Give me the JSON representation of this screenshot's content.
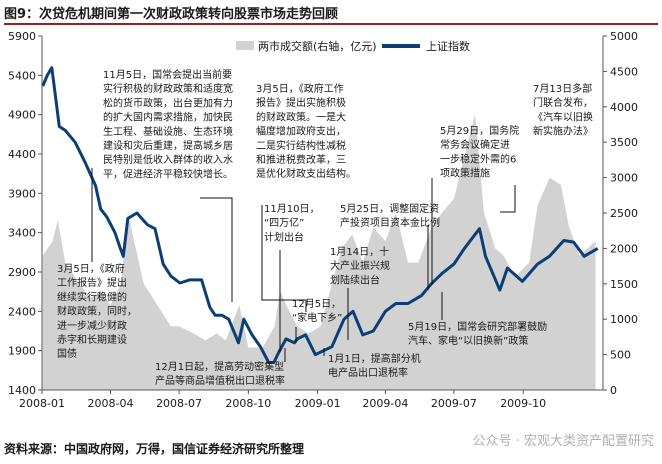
{
  "figure_title": "图9：次贷危机期间第一次财政政策转向股票市场走势回顾",
  "source": "资料来源：中国政府网，万得，国信证券经济研究所整理",
  "watermark": "公众号 · 宏观大类资产配置研究",
  "colors": {
    "index_line": "#0b3e75",
    "volume_area": "#d2d2d2",
    "title_rule": "#9c1d24",
    "annotation_line": "#111111"
  },
  "chart_data": {
    "type": "line",
    "x_ticks": [
      "2008-01",
      "2008-04",
      "2008-07",
      "2008-10",
      "2009-01",
      "2009-04",
      "2009-07",
      "2009-10"
    ],
    "yleft_ticks": [
      1400,
      1900,
      2400,
      2900,
      3400,
      3900,
      4400,
      4900,
      5400,
      5900
    ],
    "yright_ticks": [
      0,
      500,
      1000,
      1500,
      2000,
      2500,
      3000,
      3500,
      4000,
      4500,
      5000
    ],
    "yleft_lim": [
      1400,
      5900
    ],
    "yright_lim": [
      0,
      5000
    ],
    "xlim": [
      "2008-01-01",
      "2010-01-15"
    ],
    "legend_location": "top",
    "series": [
      {
        "name": "两市成交额(右轴，亿元)",
        "type": "area",
        "axis": "right",
        "x": [
          "2008-01-02",
          "2008-01-15",
          "2008-01-22",
          "2008-02-01",
          "2008-02-20",
          "2008-03-05",
          "2008-03-18",
          "2008-04-01",
          "2008-04-15",
          "2008-04-24",
          "2008-05-15",
          "2008-06-02",
          "2008-06-20",
          "2008-07-01",
          "2008-07-20",
          "2008-08-05",
          "2008-08-20",
          "2008-09-01",
          "2008-09-19",
          "2008-10-01",
          "2008-10-20",
          "2008-11-05",
          "2008-11-12",
          "2008-11-25",
          "2008-12-05",
          "2008-12-20",
          "2009-01-05",
          "2009-01-15",
          "2009-02-02",
          "2009-02-16",
          "2009-03-02",
          "2009-03-16",
          "2009-04-01",
          "2009-04-15",
          "2009-05-01",
          "2009-05-15",
          "2009-06-01",
          "2009-06-15",
          "2009-07-01",
          "2009-07-15",
          "2009-07-29",
          "2009-08-10",
          "2009-08-25",
          "2009-09-05",
          "2009-09-20",
          "2009-10-09",
          "2009-10-20",
          "2009-11-05",
          "2009-11-20",
          "2009-12-01",
          "2009-12-15",
          "2010-01-05"
        ],
        "values": [
          1900,
          2100,
          2400,
          1800,
          1500,
          1300,
          1400,
          1200,
          1500,
          2500,
          1500,
          1200,
          900,
          900,
          800,
          700,
          800,
          700,
          1200,
          600,
          600,
          900,
          1400,
          1100,
          900,
          800,
          900,
          1300,
          2000,
          2200,
          1800,
          2300,
          2100,
          2500,
          1800,
          1800,
          2300,
          2500,
          2700,
          3300,
          3900,
          2500,
          2000,
          1900,
          1600,
          1800,
          2600,
          3000,
          2900,
          2300,
          1900,
          2100
        ]
      },
      {
        "name": "上证指数",
        "type": "line",
        "axis": "left",
        "x": [
          "2008-01-02",
          "2008-01-08",
          "2008-01-14",
          "2008-01-18",
          "2008-01-24",
          "2008-02-01",
          "2008-02-14",
          "2008-02-27",
          "2008-03-05",
          "2008-03-12",
          "2008-03-19",
          "2008-03-27",
          "2008-04-07",
          "2008-04-14",
          "2008-04-18",
          "2008-04-24",
          "2008-05-06",
          "2008-05-20",
          "2008-05-30",
          "2008-06-10",
          "2008-06-20",
          "2008-07-02",
          "2008-07-15",
          "2008-07-31",
          "2008-08-11",
          "2008-08-18",
          "2008-08-27",
          "2008-09-05",
          "2008-09-18",
          "2008-09-25",
          "2008-10-06",
          "2008-10-17",
          "2008-10-28",
          "2008-11-04",
          "2008-11-10",
          "2008-11-20",
          "2008-12-01",
          "2008-12-05",
          "2008-12-16",
          "2008-12-29",
          "2009-01-09",
          "2009-01-20",
          "2009-02-05",
          "2009-02-17",
          "2009-03-02",
          "2009-03-16",
          "2009-04-01",
          "2009-04-15",
          "2009-05-01",
          "2009-05-19",
          "2009-06-01",
          "2009-06-15",
          "2009-07-01",
          "2009-07-15",
          "2009-08-04",
          "2009-08-12",
          "2009-08-31",
          "2009-09-10",
          "2009-09-30",
          "2009-10-20",
          "2009-11-05",
          "2009-11-24",
          "2009-12-07",
          "2009-12-21",
          "2010-01-08"
        ],
        "values": [
          5265,
          5400,
          5497,
          5200,
          4750,
          4700,
          4550,
          4300,
          4150,
          4000,
          3700,
          3600,
          3400,
          3200,
          3100,
          3580,
          3650,
          3500,
          3450,
          3000,
          2850,
          2760,
          2800,
          2800,
          2450,
          2350,
          2350,
          2300,
          2000,
          2300,
          2100,
          1950,
          1750,
          1750,
          1870,
          2050,
          2000,
          2050,
          2100,
          1850,
          1900,
          1950,
          2300,
          2400,
          2100,
          2150,
          2400,
          2500,
          2500,
          2600,
          2750,
          2880,
          3000,
          3200,
          3450,
          3100,
          2670,
          2950,
          2780,
          3000,
          3100,
          3300,
          3280,
          3100,
          3200
        ]
      }
    ],
    "annotations": [
      {
        "id": "ann-2008-11-05",
        "lines": [
          "11月5日，国常会提出当前要",
          "实行积极的财政政策和适度宽",
          "松的货币政策，出台更加有力",
          "的扩大国内需求措施，加快民",
          "生工程、基础设施、生态环境",
          "建设和灾后重建，提高城乡居",
          "民特别是低收入群体的收入水",
          "平，促进经济平稳较快增长。"
        ],
        "target": [
          "2008-11-05",
          1750
        ]
      },
      {
        "id": "ann-2008-03-05",
        "lines": [
          "3月5日，《政府",
          "工作报告》提出",
          "继续实行稳健的",
          "财政政策，同时，",
          "进一步减少财政",
          "赤字和长期建设",
          "国债"
        ],
        "target": [
          "2008-03-05",
          4150
        ]
      },
      {
        "id": "ann-2009-03-05",
        "lines": [
          "3月5日，《政府工作",
          "报告》提出实施积极",
          "的财政政策。一是大",
          "幅度增加政府支出，",
          "二是实行结构性减税",
          "和推进税费改革，三",
          "是优化财政支出结构。"
        ],
        "target": [
          "2009-03-05",
          2100
        ]
      },
      {
        "id": "ann-2008-11-10",
        "lines": [
          "11月10日，",
          "“四万亿”",
          "计划出台"
        ],
        "target": [
          "2008-11-10",
          1870
        ]
      },
      {
        "id": "ann-2008-12-01",
        "lines": [
          "12月1日起，提高劳动密集型",
          "产品等商品增值税出口退税率"
        ],
        "target": [
          "2008-12-01",
          2000
        ]
      },
      {
        "id": "ann-2008-12-05",
        "lines": [
          "12月5日，",
          "“家电下乡”"
        ],
        "target": [
          "2008-12-05",
          2050
        ]
      },
      {
        "id": "ann-2009-01-14",
        "lines": [
          "1月14日，十",
          "大产业振兴规",
          "划陆续出台"
        ],
        "target": [
          "2009-01-14",
          1950
        ]
      },
      {
        "id": "ann-2009-01-01",
        "lines": [
          "1月1日，提高部分机",
          "电产品出口退税率"
        ],
        "target": [
          "2009-01-01",
          1900
        ]
      },
      {
        "id": "ann-2009-05-25",
        "lines": [
          "5月25日，调整固定资",
          "产投资项目资本金比例"
        ],
        "target": [
          "2009-05-25",
          2650
        ]
      },
      {
        "id": "ann-2009-05-29",
        "lines": [
          "5月29日，国务院",
          "常务会议确定进",
          "一步稳定外需的6",
          "项政策措施"
        ],
        "target": [
          "2009-05-29",
          2700
        ]
      },
      {
        "id": "ann-2009-07-13",
        "lines": [
          "7月13日多部",
          "门联合发布，",
          "《汽车以旧换",
          "新实施办法》"
        ],
        "target": [
          "2009-07-13",
          3200
        ]
      },
      {
        "id": "ann-2009-05-19",
        "lines": [
          "5月19日，国常会研究部署鼓励",
          "汽车、家电“以旧换新”政策"
        ],
        "target": [
          "2009-05-19",
          2600
        ]
      }
    ]
  }
}
